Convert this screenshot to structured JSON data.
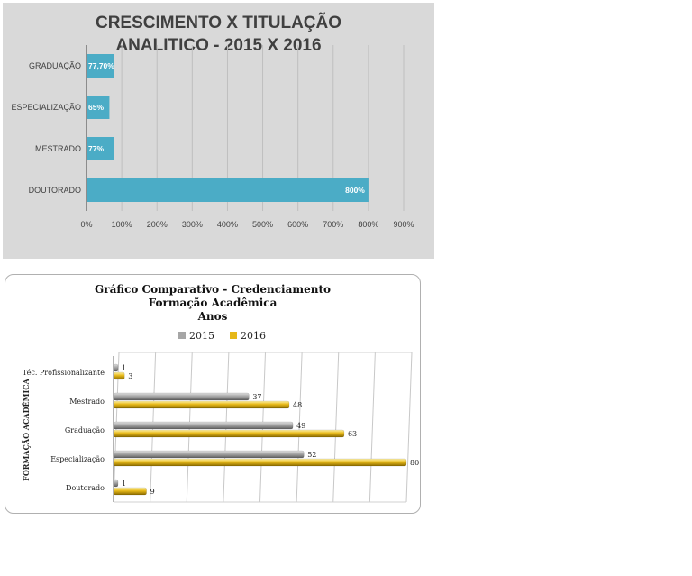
{
  "chart_data": [
    {
      "type": "bar",
      "orientation": "horizontal",
      "title_line1": "CRESCIMENTO X TITULAÇÃO",
      "title_line2": "ANALITICO - 2015 X 2016",
      "categories": [
        "GRADUAÇÃO",
        "ESPECIALIZAÇÃO",
        "MESTRADO",
        "DOUTORADO"
      ],
      "values": [
        77.7,
        65,
        77,
        800
      ],
      "data_labels": [
        "77,70%",
        "65%",
        "77%",
        "800%"
      ],
      "xlim": [
        0,
        900
      ],
      "x_ticks": [
        "0%",
        "100%",
        "200%",
        "300%",
        "400%",
        "500%",
        "600%",
        "700%",
        "800%",
        "900%"
      ],
      "grid": true,
      "bar_color": "#4bacc6"
    },
    {
      "type": "bar",
      "orientation": "horizontal",
      "title_line1": "Gráfico Comparativo - Credenciamento",
      "title_line2": "Formação Acadêmica",
      "title_line3": "Anos",
      "ylabel": "FORMAÇÃO ACADÊMICA",
      "categories": [
        "Téc. Profissionalizante",
        "Mestrado",
        "Graduação",
        "Especialização",
        "Doutorado"
      ],
      "series": [
        {
          "name": "2015",
          "values": [
            1,
            37,
            49,
            52,
            1
          ],
          "color": "#a6a6a6"
        },
        {
          "name": "2016",
          "values": [
            3,
            48,
            63,
            80,
            9
          ],
          "color": "#e6b818"
        }
      ],
      "xlim": [
        0,
        80
      ],
      "grid": true,
      "legend": "top"
    }
  ]
}
